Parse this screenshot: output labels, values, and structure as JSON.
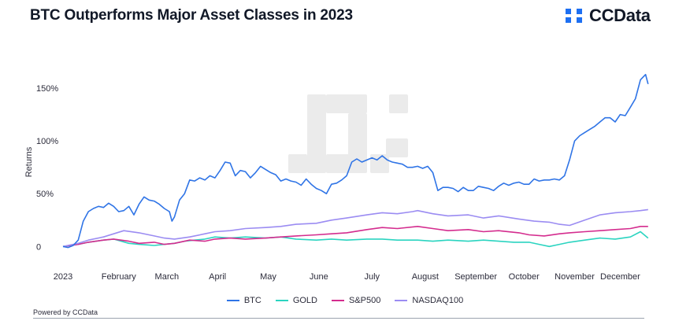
{
  "header": {
    "title": "BTC Outperforms Major Asset Classes in 2023",
    "brand": "CCData"
  },
  "footer": {
    "powered_by": "Powered by CCData"
  },
  "colors": {
    "btc": "#2f74e6",
    "gold": "#2bd4c0",
    "sp500": "#d42c8e",
    "nasdaq": "#9b8cf2",
    "brand": "#1d6ff2",
    "watermark": "#ebebeb"
  },
  "chart_data": {
    "type": "line",
    "title": "BTC Outperforms Major Asset Classes in 2023",
    "xlabel": "",
    "ylabel": "Returns",
    "ylim": [
      -5,
      165
    ],
    "yticks": [
      0,
      50,
      100,
      150
    ],
    "ytick_labels": [
      "0",
      "50%",
      "100%",
      "150%"
    ],
    "xlim": [
      0,
      11.6
    ],
    "xticks": [
      0,
      1.1,
      2.05,
      3.05,
      4.05,
      5.05,
      6.1,
      7.15,
      8.15,
      9.1,
      10.1,
      11.0
    ],
    "xtick_labels": [
      "2023",
      "February",
      "March",
      "April",
      "May",
      "June",
      "July",
      "August",
      "September",
      "October",
      "November",
      "December"
    ],
    "legend_position": "bottom",
    "grid": false,
    "series": [
      {
        "name": "BTC",
        "color_key": "btc",
        "x": [
          0,
          0.1,
          0.2,
          0.3,
          0.35,
          0.4,
          0.5,
          0.6,
          0.7,
          0.8,
          0.9,
          1.0,
          1.1,
          1.2,
          1.3,
          1.4,
          1.5,
          1.6,
          1.7,
          1.8,
          1.9,
          2.0,
          2.1,
          2.15,
          2.2,
          2.3,
          2.4,
          2.5,
          2.6,
          2.7,
          2.8,
          2.9,
          3.0,
          3.1,
          3.2,
          3.3,
          3.4,
          3.5,
          3.6,
          3.7,
          3.8,
          3.9,
          4.0,
          4.1,
          4.2,
          4.3,
          4.4,
          4.5,
          4.6,
          4.7,
          4.8,
          4.9,
          5.0,
          5.1,
          5.2,
          5.3,
          5.4,
          5.5,
          5.6,
          5.7,
          5.8,
          5.9,
          6.0,
          6.1,
          6.2,
          6.3,
          6.4,
          6.5,
          6.6,
          6.7,
          6.8,
          6.9,
          7.0,
          7.1,
          7.2,
          7.3,
          7.4,
          7.5,
          7.6,
          7.7,
          7.8,
          7.9,
          8.0,
          8.1,
          8.2,
          8.3,
          8.4,
          8.5,
          8.6,
          8.7,
          8.8,
          8.9,
          9.0,
          9.1,
          9.2,
          9.3,
          9.4,
          9.5,
          9.6,
          9.7,
          9.8,
          9.9,
          10.0,
          10.1,
          10.2,
          10.3,
          10.4,
          10.5,
          10.6,
          10.7,
          10.8,
          10.9,
          11.0,
          11.1,
          11.2,
          11.3,
          11.4,
          11.5,
          11.55
        ],
        "values": [
          0,
          -1,
          1,
          6,
          15,
          24,
          33,
          36,
          38,
          37,
          41,
          38,
          33,
          34,
          38,
          30,
          40,
          47,
          44,
          43,
          40,
          36,
          33,
          24,
          28,
          44,
          50,
          63,
          62,
          65,
          63,
          67,
          65,
          72,
          80,
          79,
          67,
          72,
          71,
          65,
          70,
          76,
          73,
          70,
          68,
          62,
          64,
          62,
          61,
          58,
          64,
          59,
          55,
          53,
          50,
          59,
          60,
          63,
          67,
          80,
          83,
          80,
          82,
          84,
          82,
          86,
          82,
          80,
          79,
          78,
          75,
          75,
          76,
          74,
          76,
          70,
          53,
          56,
          56,
          55,
          52,
          56,
          53,
          53,
          57,
          56,
          55,
          53,
          57,
          60,
          58,
          60,
          61,
          59,
          59,
          64,
          62,
          63,
          63,
          64,
          63,
          67,
          82,
          100,
          105,
          108,
          111,
          114,
          118,
          122,
          122,
          118,
          125,
          124,
          132,
          140,
          158,
          163,
          154
        ]
      },
      {
        "name": "GOLD",
        "color_key": "gold",
        "x": [
          0,
          0.3,
          0.5,
          0.8,
          1.0,
          1.3,
          1.5,
          1.8,
          2.0,
          2.2,
          2.4,
          2.6,
          2.8,
          3.0,
          3.3,
          3.6,
          4.0,
          4.3,
          4.6,
          5.0,
          5.3,
          5.6,
          6.0,
          6.3,
          6.6,
          7.0,
          7.3,
          7.6,
          8.0,
          8.3,
          8.6,
          8.9,
          9.2,
          9.4,
          9.6,
          9.8,
          10.0,
          10.3,
          10.6,
          10.9,
          11.2,
          11.4,
          11.55
        ],
        "values": [
          0,
          2,
          4,
          6,
          7,
          3,
          2,
          1,
          2,
          3,
          5,
          6,
          7,
          9,
          8,
          9,
          8,
          9,
          7,
          6,
          7,
          6,
          7,
          7,
          6,
          6,
          5,
          6,
          5,
          6,
          5,
          4,
          4,
          2,
          0,
          2,
          4,
          6,
          8,
          7,
          9,
          14,
          8
        ]
      },
      {
        "name": "S&P500",
        "color_key": "sp500",
        "x": [
          0,
          0.3,
          0.5,
          0.8,
          1.0,
          1.3,
          1.5,
          1.8,
          2.0,
          2.2,
          2.5,
          2.8,
          3.0,
          3.3,
          3.6,
          4.0,
          4.3,
          4.6,
          5.0,
          5.3,
          5.6,
          6.0,
          6.3,
          6.6,
          7.0,
          7.3,
          7.6,
          8.0,
          8.3,
          8.6,
          9.0,
          9.2,
          9.5,
          9.8,
          10.0,
          10.3,
          10.6,
          10.9,
          11.2,
          11.4,
          11.55
        ],
        "values": [
          0,
          2,
          4,
          6,
          7,
          5,
          3,
          4,
          2,
          3,
          6,
          5,
          7,
          8,
          7,
          8,
          9,
          10,
          11,
          12,
          13,
          16,
          18,
          17,
          19,
          17,
          15,
          16,
          14,
          15,
          13,
          11,
          10,
          12,
          13,
          14,
          15,
          16,
          17,
          19,
          19
        ]
      },
      {
        "name": "NASDAQ100",
        "color_key": "nasdaq",
        "x": [
          0,
          0.3,
          0.5,
          0.8,
          1.0,
          1.2,
          1.5,
          1.8,
          2.0,
          2.2,
          2.5,
          2.8,
          3.0,
          3.3,
          3.6,
          4.0,
          4.3,
          4.6,
          5.0,
          5.3,
          5.6,
          6.0,
          6.3,
          6.6,
          6.9,
          7.0,
          7.3,
          7.6,
          8.0,
          8.3,
          8.6,
          9.0,
          9.3,
          9.6,
          9.8,
          10.0,
          10.3,
          10.6,
          10.9,
          11.2,
          11.4,
          11.55
        ],
        "values": [
          0,
          3,
          6,
          9,
          12,
          15,
          13,
          10,
          8,
          7,
          9,
          12,
          14,
          15,
          17,
          18,
          19,
          21,
          22,
          25,
          27,
          30,
          32,
          31,
          33,
          34,
          31,
          29,
          30,
          27,
          29,
          26,
          24,
          23,
          21,
          20,
          25,
          30,
          32,
          33,
          34,
          35
        ]
      }
    ]
  }
}
